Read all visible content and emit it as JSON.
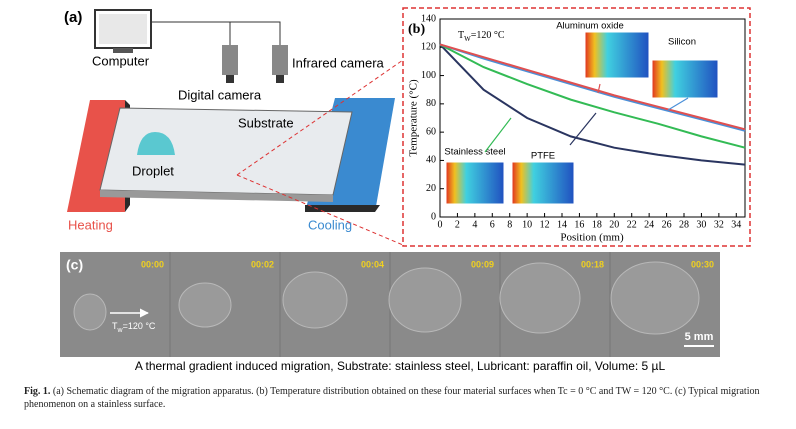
{
  "panel_a": {
    "label": "(a)",
    "computer": "Computer",
    "infrared_camera": "Infrared camera",
    "digital_camera": "Digital camera",
    "substrate": "Substrate",
    "droplet": "Droplet",
    "heating": "Heating",
    "cooling": "Cooling"
  },
  "chart_data": {
    "type": "line",
    "panel_label": "(b)",
    "xlabel": "Position (mm)",
    "ylabel": "Temperature (°C)",
    "annotation": {
      "main": "T",
      "sub": "W",
      "rest": "=120 °C"
    },
    "x": [
      0,
      5,
      10,
      15,
      20,
      25,
      30,
      35
    ],
    "series": [
      {
        "name": "Aluminum oxide",
        "color": "#e05050",
        "values": [
          122,
          113,
          104,
          95,
          86,
          78,
          70,
          62
        ]
      },
      {
        "name": "Silicon",
        "color": "#4a90d9",
        "values": [
          122,
          112,
          103,
          94,
          85,
          77,
          69,
          61
        ]
      },
      {
        "name": "Stainless steel",
        "color": "#33bb55",
        "values": [
          122,
          106,
          94,
          83,
          74,
          66,
          57,
          49
        ]
      },
      {
        "name": "PTFE",
        "color": "#2a3560",
        "values": [
          122,
          90,
          70,
          57,
          49,
          44,
          40,
          37
        ]
      }
    ],
    "xlim": [
      0,
      35
    ],
    "ylim": [
      0,
      140
    ],
    "xticks": [
      0,
      2,
      4,
      6,
      8,
      10,
      12,
      14,
      16,
      18,
      20,
      22,
      24,
      26,
      28,
      30,
      32,
      34
    ],
    "yticks": [
      0,
      20,
      40,
      60,
      80,
      100,
      120,
      140
    ]
  },
  "panel_c": {
    "label": "(c)",
    "timestamps": [
      "00:00",
      "00:02",
      "00:04",
      "00:09",
      "00:18",
      "00:30"
    ],
    "temperature": {
      "main": "T",
      "sub": "w",
      "rest": "=120 °C"
    },
    "scale_bar": "5 mm",
    "caption": "A thermal gradient induced migration, Substrate: stainless steel, Lubricant: paraffin oil, Volume: 5 µL"
  },
  "figure_caption": {
    "label": "Fig. 1.",
    "text": "(a) Schematic diagram of the migration apparatus. (b) Temperature distribution obtained on these four material surfaces when Tc = 0 °C and TW = 120 °C. (c) Typical migration phenomenon on a stainless surface."
  }
}
